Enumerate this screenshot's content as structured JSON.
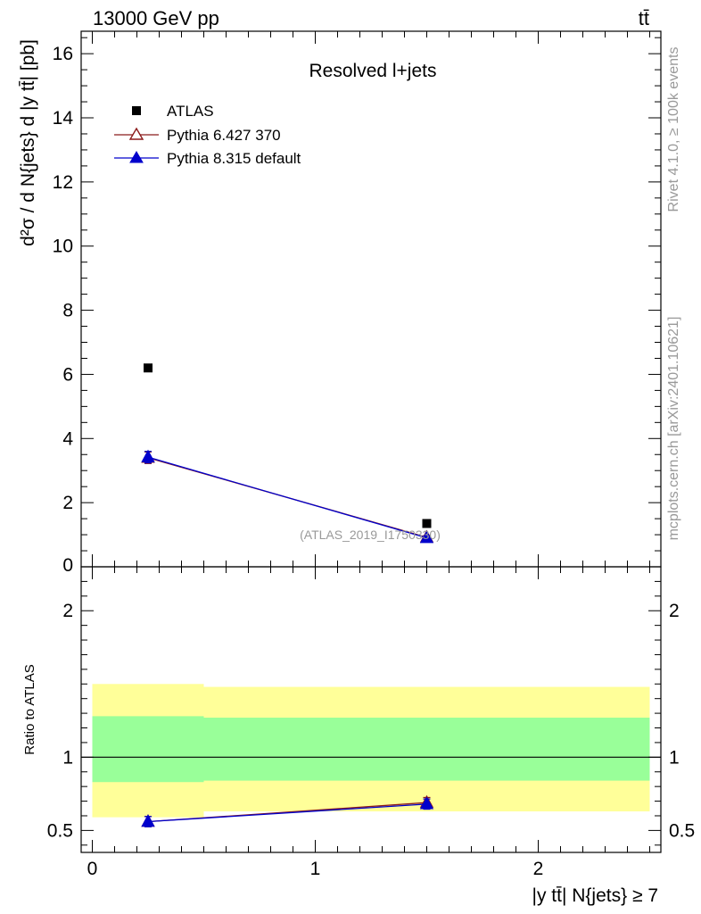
{
  "header": {
    "left": "13000 GeV pp",
    "right": "tt̄"
  },
  "side_labels": {
    "rivet": "Rivet 4.1.0, ≥ 100k events",
    "mcplots": "mcplots.cern.ch [arXiv:2401.10621]"
  },
  "chart_data": {
    "type": "scatter",
    "title": "Resolved l+jets",
    "watermark": "(ATLAS_2019_I1750330)",
    "ylabel": "d²σ / d N{jets} d |y tt̄| [pb]",
    "xlabel": "|y tt̄| N{jets} ≥ 7",
    "ratio_ylabel": "Ratio to ATLAS",
    "xlim": [
      -0.05,
      2.55
    ],
    "ylim": [
      0,
      16.7
    ],
    "ratio_ylim": [
      0.35,
      2.3
    ],
    "x_ticks": [
      "0",
      "1",
      "2"
    ],
    "y_ticks": [
      "2",
      "4",
      "6",
      "8",
      "10",
      "12",
      "14",
      "16"
    ],
    "ratio_ticks": [
      "0.5",
      "1",
      "2"
    ],
    "bins": [
      [
        0,
        0.5
      ],
      [
        0.5,
        2.5
      ]
    ],
    "legend": [
      {
        "name": "ATLAS",
        "marker": "square",
        "color": "#000000"
      },
      {
        "name": "Pythia 6.427 370",
        "marker": "open-triangle",
        "color": "#8b1a1a"
      },
      {
        "name": "Pythia 8.315 default",
        "marker": "filled-triangle",
        "color": "#0000cc"
      }
    ],
    "series": [
      {
        "name": "ATLAS",
        "x": [
          0.25,
          1.5
        ],
        "y": [
          6.2,
          1.35
        ]
      },
      {
        "name": "Pythia 6.427 370",
        "x": [
          0.25,
          1.5
        ],
        "y": [
          3.4,
          0.92
        ],
        "err": [
          0.18,
          0.05
        ]
      },
      {
        "name": "Pythia 8.315 default",
        "x": [
          0.25,
          1.5
        ],
        "y": [
          3.42,
          0.9
        ],
        "err": [
          0.18,
          0.05
        ]
      }
    ],
    "ratio_series": [
      {
        "name": "Pythia 6.427 370",
        "x": [
          0.25,
          1.5
        ],
        "y": [
          0.56,
          0.69
        ],
        "err": [
          0.035,
          0.035
        ]
      },
      {
        "name": "Pythia 8.315 default",
        "x": [
          0.25,
          1.5
        ],
        "y": [
          0.56,
          0.68
        ],
        "err": [
          0.035,
          0.035
        ]
      }
    ],
    "ratio_bands": {
      "green": [
        [
          0.83,
          1.28
        ],
        [
          0.84,
          1.27
        ]
      ],
      "yellow": [
        [
          0.59,
          1.5
        ],
        [
          0.63,
          1.48
        ]
      ]
    }
  }
}
